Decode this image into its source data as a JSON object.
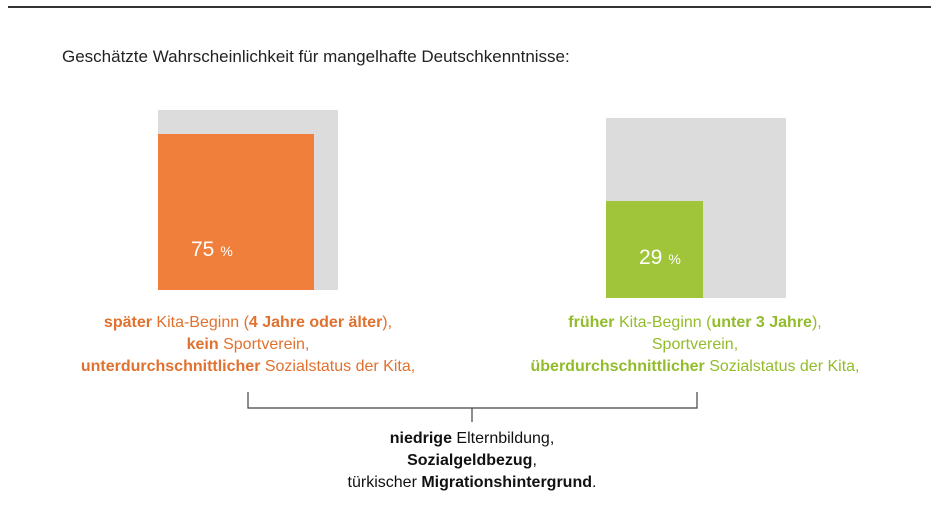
{
  "chart_data": {
    "type": "square",
    "title": "Geschätzte Wahrscheinlichkeit für mangelhafte Deutschkenntnisse:",
    "values": [
      75,
      29
    ],
    "colors": [
      "#f07f3c",
      "#a1c53a"
    ],
    "background_color": "#dcdcdc",
    "unit": "%",
    "ylim": [
      0,
      100
    ]
  },
  "groups": [
    {
      "lines": [
        [
          {
            "text": "später",
            "bold": true
          },
          {
            "text": " Kita-Beginn ("
          },
          {
            "text": "4 Jahre oder älter",
            "bold": true
          },
          {
            "text": "),"
          }
        ],
        [
          {
            "text": "kein",
            "bold": true
          },
          {
            "text": " Sportverein,"
          }
        ],
        [
          {
            "text": "unterdurchschnittlicher",
            "bold": true
          },
          {
            "text": " Sozialstatus der Kita,"
          }
        ]
      ]
    },
    {
      "lines": [
        [
          {
            "text": "früher",
            "bold": true
          },
          {
            "text": " Kita-Beginn ("
          },
          {
            "text": "unter 3 Jahre",
            "bold": true
          },
          {
            "text": "),"
          }
        ],
        [
          {
            "text": "Sportverein,"
          }
        ],
        [
          {
            "text": "überdurchschnittlicher",
            "bold": true
          },
          {
            "text": " Sozialstatus der Kita,"
          }
        ]
      ]
    }
  ],
  "common": {
    "lines": [
      [
        {
          "text": "niedrige",
          "bold": true
        },
        {
          "text": " Elternbildung,"
        }
      ],
      [
        {
          "text": "Sozialgeldbezug",
          "bold": true
        },
        {
          "text": ","
        }
      ],
      [
        {
          "text": "türkischer "
        },
        {
          "text": "Migrationshintergrund",
          "bold": true
        },
        {
          "text": "."
        }
      ]
    ]
  }
}
